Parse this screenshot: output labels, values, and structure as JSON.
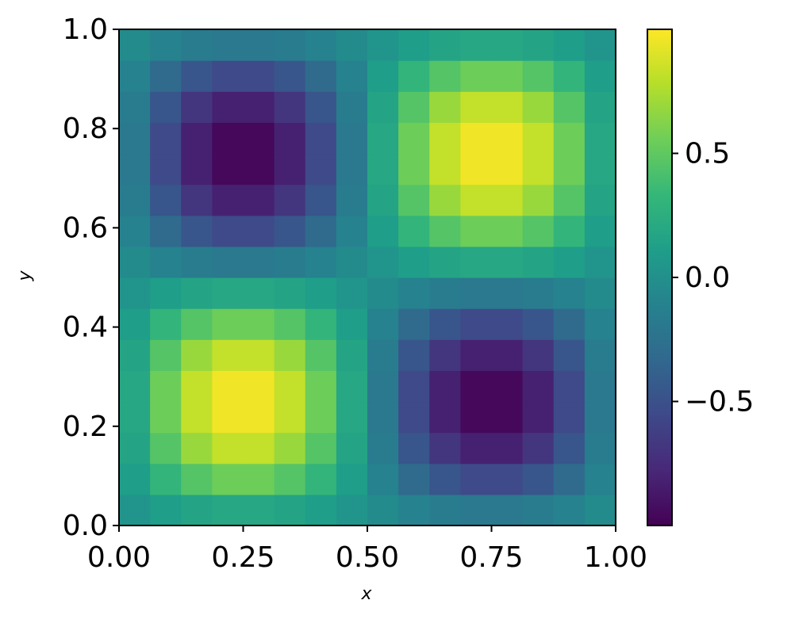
{
  "chart_data": {
    "type": "heatmap",
    "xlabel": "x",
    "ylabel": "y",
    "xlim": [
      0,
      1
    ],
    "ylim": [
      0,
      1
    ],
    "xticks": [
      {
        "value": 0,
        "label": "0.00"
      },
      {
        "value": 0.25,
        "label": "0.25"
      },
      {
        "value": 0.5,
        "label": "0.50"
      },
      {
        "value": 0.75,
        "label": "0.75"
      },
      {
        "value": 1,
        "label": "1.00"
      }
    ],
    "yticks": [
      {
        "value": 0,
        "label": "0.0"
      },
      {
        "value": 0.2,
        "label": "0.2"
      },
      {
        "value": 0.4,
        "label": "0.4"
      },
      {
        "value": 0.6,
        "label": "0.6"
      },
      {
        "value": 0.8,
        "label": "0.8"
      },
      {
        "value": 1,
        "label": "1.0"
      }
    ],
    "zlim": [
      -1,
      1
    ],
    "zticks": [
      {
        "value": -0.5,
        "label": "−0.5"
      },
      {
        "value": 0,
        "label": "0.0"
      },
      {
        "value": 0.5,
        "label": "0.5"
      }
    ],
    "colormap": [
      "#440154",
      "#482878",
      "#3e4989",
      "#31688e",
      "#26828e",
      "#1f9e89",
      "#35b779",
      "#6ece58",
      "#b5de2b",
      "#fde725"
    ],
    "z": [
      [
        0.04,
        0.11,
        0.16,
        0.19,
        0.19,
        0.16,
        0.11,
        0.04,
        -0.04,
        -0.11,
        -0.16,
        -0.19,
        -0.19,
        -0.16,
        -0.11,
        -0.04
      ],
      [
        0.11,
        0.31,
        0.46,
        0.55,
        0.55,
        0.46,
        0.31,
        0.11,
        -0.11,
        -0.31,
        -0.46,
        -0.55,
        -0.55,
        -0.46,
        -0.31,
        -0.11
      ],
      [
        0.16,
        0.46,
        0.69,
        0.82,
        0.82,
        0.69,
        0.46,
        0.16,
        -0.16,
        -0.46,
        -0.69,
        -0.82,
        -0.82,
        -0.69,
        -0.46,
        -0.16
      ],
      [
        0.19,
        0.55,
        0.82,
        0.96,
        0.96,
        0.82,
        0.55,
        0.19,
        -0.19,
        -0.55,
        -0.82,
        -0.96,
        -0.96,
        -0.82,
        -0.55,
        -0.19
      ],
      [
        0.19,
        0.55,
        0.82,
        0.96,
        0.96,
        0.82,
        0.55,
        0.19,
        -0.19,
        -0.55,
        -0.82,
        -0.96,
        -0.96,
        -0.82,
        -0.55,
        -0.19
      ],
      [
        0.16,
        0.46,
        0.69,
        0.82,
        0.82,
        0.69,
        0.46,
        0.16,
        -0.16,
        -0.46,
        -0.69,
        -0.82,
        -0.82,
        -0.69,
        -0.46,
        -0.16
      ],
      [
        0.11,
        0.31,
        0.46,
        0.55,
        0.55,
        0.46,
        0.31,
        0.11,
        -0.11,
        -0.31,
        -0.46,
        -0.55,
        -0.55,
        -0.46,
        -0.31,
        -0.11
      ],
      [
        0.04,
        0.11,
        0.16,
        0.19,
        0.19,
        0.16,
        0.11,
        0.04,
        -0.04,
        -0.11,
        -0.16,
        -0.19,
        -0.19,
        -0.16,
        -0.11,
        -0.04
      ],
      [
        -0.04,
        -0.11,
        -0.16,
        -0.19,
        -0.19,
        -0.16,
        -0.11,
        -0.04,
        0.04,
        0.11,
        0.16,
        0.19,
        0.19,
        0.16,
        0.11,
        0.04
      ],
      [
        -0.11,
        -0.31,
        -0.46,
        -0.55,
        -0.55,
        -0.46,
        -0.31,
        -0.11,
        0.11,
        0.31,
        0.46,
        0.55,
        0.55,
        0.46,
        0.31,
        0.11
      ],
      [
        -0.16,
        -0.46,
        -0.69,
        -0.82,
        -0.82,
        -0.69,
        -0.46,
        -0.16,
        0.16,
        0.46,
        0.69,
        0.82,
        0.82,
        0.69,
        0.46,
        0.16
      ],
      [
        -0.19,
        -0.55,
        -0.82,
        -0.96,
        -0.96,
        -0.82,
        -0.55,
        -0.19,
        0.19,
        0.55,
        0.82,
        0.96,
        0.96,
        0.82,
        0.55,
        0.19
      ],
      [
        -0.19,
        -0.55,
        -0.82,
        -0.96,
        -0.96,
        -0.82,
        -0.55,
        -0.19,
        0.19,
        0.55,
        0.82,
        0.96,
        0.96,
        0.82,
        0.55,
        0.19
      ],
      [
        -0.16,
        -0.46,
        -0.69,
        -0.82,
        -0.82,
        -0.69,
        -0.46,
        -0.16,
        0.16,
        0.46,
        0.69,
        0.82,
        0.82,
        0.69,
        0.46,
        0.16
      ],
      [
        -0.11,
        -0.31,
        -0.46,
        -0.55,
        -0.55,
        -0.46,
        -0.31,
        -0.11,
        0.11,
        0.31,
        0.46,
        0.55,
        0.55,
        0.46,
        0.31,
        0.11
      ],
      [
        -0.04,
        -0.11,
        -0.16,
        -0.19,
        -0.19,
        -0.16,
        -0.11,
        -0.04,
        0.04,
        0.11,
        0.16,
        0.19,
        0.19,
        0.16,
        0.11,
        0.04
      ]
    ]
  }
}
